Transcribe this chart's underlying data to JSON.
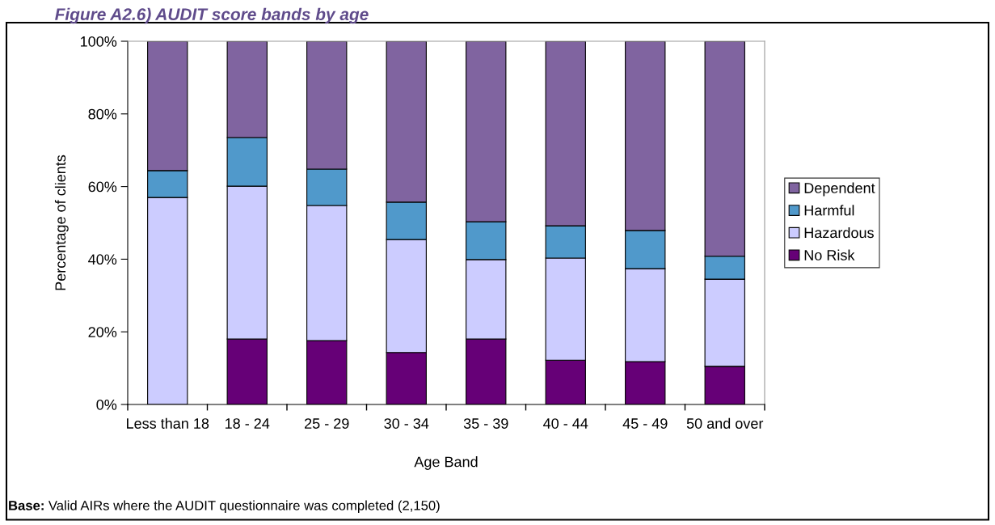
{
  "chart_data": {
    "type": "bar",
    "stacked": true,
    "title": "Figure A2.6) AUDIT score bands by age",
    "xlabel": "Age Band",
    "ylabel": "Percentage of clients",
    "categories": [
      "Less than 18",
      "18 - 24",
      "25 - 29",
      "30 - 34",
      "35 - 39",
      "40 - 44",
      "45 - 49",
      "50 and over"
    ],
    "series": [
      {
        "name": "No Risk",
        "color": "#660077",
        "values": [
          0,
          18.0,
          17.6,
          14.3,
          18.0,
          12.2,
          11.8,
          10.5
        ]
      },
      {
        "name": "Hazardous",
        "color": "#ccccff",
        "values": [
          57.0,
          42.1,
          37.2,
          31.1,
          21.9,
          28.1,
          25.6,
          24.0
        ]
      },
      {
        "name": "Harmful",
        "color": "#5099cb",
        "values": [
          7.4,
          13.4,
          10.0,
          10.3,
          10.4,
          8.9,
          10.5,
          6.3
        ]
      },
      {
        "name": "Dependent",
        "color": "#8064a0",
        "values": [
          35.6,
          26.5,
          35.2,
          44.3,
          49.7,
          50.8,
          52.1,
          59.2
        ]
      }
    ],
    "ylim": [
      0,
      100
    ],
    "yticks": [
      {
        "value": 0,
        "label": "0%"
      },
      {
        "value": 20,
        "label": "20%"
      },
      {
        "value": 40,
        "label": "40%"
      },
      {
        "value": 60,
        "label": "60%"
      },
      {
        "value": 80,
        "label": "80%"
      },
      {
        "value": 100,
        "label": "100%"
      }
    ],
    "grid": false,
    "legend": "right",
    "annotations": [
      "Base: Valid AIRs where the AUDIT questionnaire was completed (2,150)"
    ]
  }
}
